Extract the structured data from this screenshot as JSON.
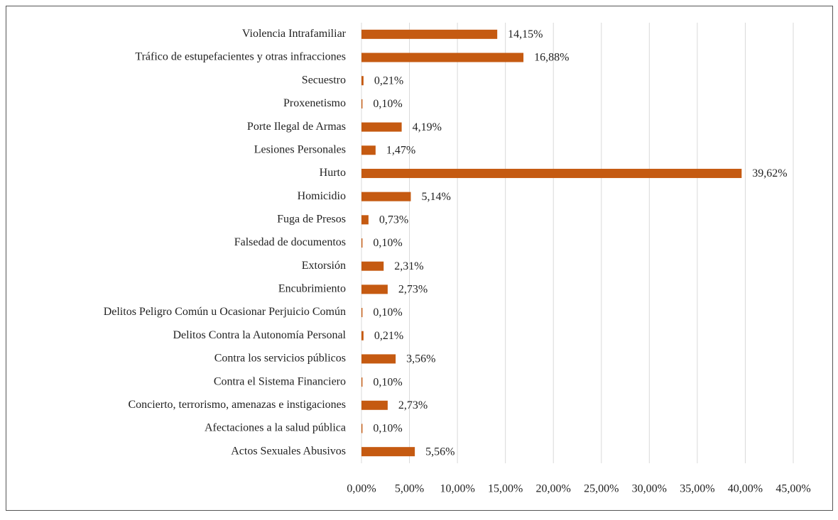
{
  "chart_data": {
    "type": "barh",
    "categories": [
      "Violencia Intrafamiliar",
      "Tráfico de estupefacientes y otras infracciones",
      "Secuestro",
      "Proxenetismo",
      "Porte Ilegal de Armas",
      "Lesiones Personales",
      "Hurto",
      "Homicidio",
      "Fuga de Presos",
      "Falsedad de documentos",
      "Extorsión",
      "Encubrimiento",
      "Delitos Peligro Común u Ocasionar Perjuicio Común",
      "Delitos Contra la Autonomía Personal",
      "Contra los servicios públicos",
      "Contra el Sistema Financiero",
      "Concierto, terrorismo, amenazas e instigaciones",
      "Afectaciones a la salud pública",
      "Actos Sexuales Abusivos"
    ],
    "values": [
      14.15,
      16.88,
      0.21,
      0.1,
      4.19,
      1.47,
      39.62,
      5.14,
      0.73,
      0.1,
      2.31,
      2.73,
      0.1,
      0.21,
      3.56,
      0.1,
      2.73,
      0.1,
      5.56
    ],
    "value_labels": [
      "14,15%",
      "16,88%",
      "0,21%",
      "0,10%",
      "4,19%",
      "1,47%",
      "39,62%",
      "5,14%",
      "0,73%",
      "0,10%",
      "2,31%",
      "2,73%",
      "0,10%",
      "0,21%",
      "3,56%",
      "0,10%",
      "2,73%",
      "0,10%",
      "5,56%"
    ],
    "color": "#c55a11",
    "xlim": [
      0,
      45
    ],
    "xticks": [
      {
        "value": 0,
        "label": "0,00%"
      },
      {
        "value": 5,
        "label": "5,00%"
      },
      {
        "value": 10,
        "label": "10,00%"
      },
      {
        "value": 15,
        "label": "15,00%"
      },
      {
        "value": 20,
        "label": "20,00%"
      },
      {
        "value": 25,
        "label": "25,00%"
      },
      {
        "value": 30,
        "label": "30,00%"
      },
      {
        "value": 35,
        "label": "35,00%"
      },
      {
        "value": 40,
        "label": "40,00%"
      },
      {
        "value": 45,
        "label": "45,00%"
      }
    ],
    "grid": true
  }
}
